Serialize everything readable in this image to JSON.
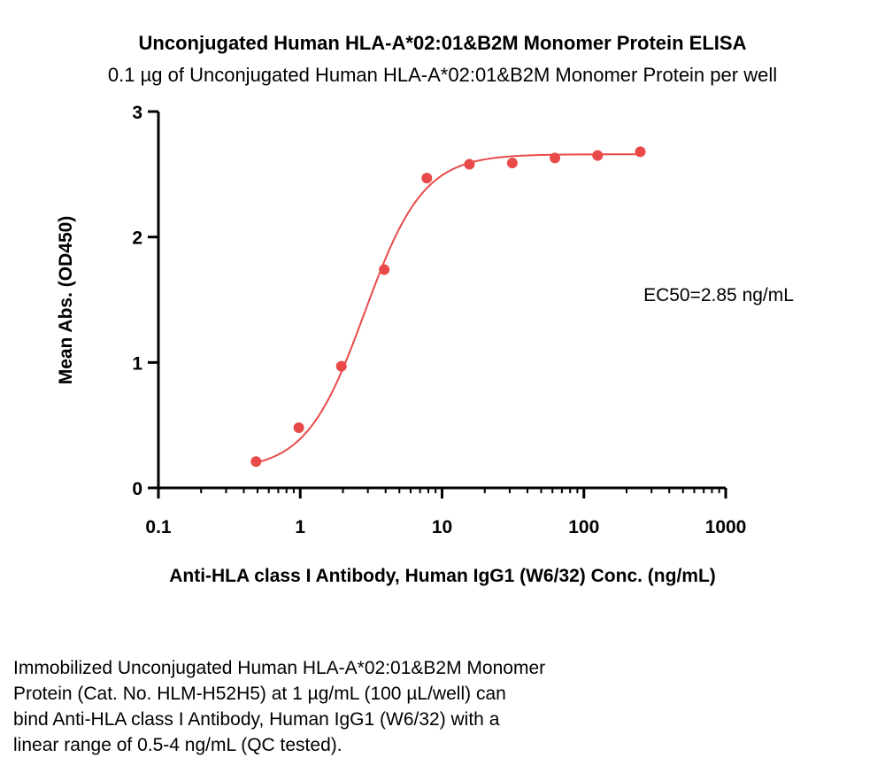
{
  "chart_data": {
    "type": "scatter",
    "title": "Unconjugated Human HLA-A*02:01&B2M Monomer Protein ELISA",
    "subtitle": "0.1 µg of Unconjugated Human HLA-A*02:01&B2M Monomer Protein per well",
    "xlabel": "Anti-HLA class I Antibody, Human IgG1 (W6/32) Conc. (ng/mL)",
    "ylabel": "Mean Abs. (OD450)",
    "x_scale": "log",
    "xlim": [
      0.1,
      1000
    ],
    "ylim": [
      0,
      3
    ],
    "x_ticks": [
      0.1,
      1,
      10,
      100,
      1000
    ],
    "x_tick_labels": [
      "0.1",
      "1",
      "10",
      "100",
      "1000"
    ],
    "y_ticks": [
      0,
      1,
      2,
      3
    ],
    "y_tick_labels": [
      "0",
      "1",
      "2",
      "3"
    ],
    "grid": false,
    "annotation": "EC50=2.85 ng/mL",
    "series": [
      {
        "x": [
          0.488,
          0.977,
          1.95,
          3.91,
          7.81,
          15.6,
          31.3,
          62.5,
          125,
          250
        ],
        "y": [
          0.21,
          0.48,
          0.97,
          1.74,
          2.47,
          2.58,
          2.59,
          2.63,
          2.65,
          2.68
        ],
        "color": "#e84a4a",
        "fit": {
          "model": "4PL",
          "bottom": 0.14,
          "top": 2.66,
          "ec50": 2.85,
          "hill": 2.1,
          "range": [
            0.488,
            250
          ]
        }
      }
    ]
  },
  "caption": {
    "lines": [
      "Immobilized Unconjugated Human HLA-A*02:01&B2M Monomer",
      "Protein (Cat. No. HLM-H52H5) at 1 µg/mL (100 µL/well) can",
      "bind Anti-HLA class I Antibody, Human IgG1 (W6/32) with a",
      "linear range of 0.5-4 ng/mL (QC tested)."
    ]
  }
}
